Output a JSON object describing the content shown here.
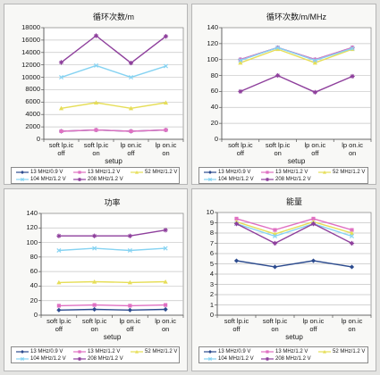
{
  "chart_data": [
    {
      "type": "line",
      "title": "循环次数/m",
      "xlabel": "setup",
      "ylabel": "",
      "categories": [
        "soft lp.ic off",
        "soft lp.ic on",
        "lp on.ic off",
        "lp on.ic on"
      ],
      "ylim": [
        0,
        18000
      ],
      "yticks": [
        0,
        2000,
        4000,
        6000,
        8000,
        10000,
        12000,
        14000,
        16000,
        18000
      ],
      "grid": true,
      "legend": "bottom",
      "series": [
        {
          "name": "13 MHz/0.9 V",
          "color": "#2c4b8e",
          "marker": "diamond",
          "values": [
            1300,
            1500,
            1300,
            1500
          ]
        },
        {
          "name": "13 MHz/1.2 V",
          "color": "#e070c2",
          "marker": "square",
          "values": [
            1300,
            1500,
            1300,
            1500
          ]
        },
        {
          "name": "52 MHz/1.2 V",
          "color": "#e6de58",
          "marker": "triangle",
          "values": [
            5000,
            5900,
            5000,
            5900
          ]
        },
        {
          "name": "104 MHz/1.2 V",
          "color": "#86d3f2",
          "marker": "cross",
          "values": [
            10000,
            11900,
            10000,
            11800
          ]
        },
        {
          "name": "208 MHz/1.2 V",
          "color": "#8e3f9c",
          "marker": "star",
          "values": [
            12400,
            16700,
            12300,
            16600
          ]
        }
      ]
    },
    {
      "type": "line",
      "title": "循环次数/m/MHz",
      "xlabel": "setup",
      "ylabel": "",
      "categories": [
        "soft lp.ic off",
        "soft lp.ic on",
        "lp on.ic off",
        "lp on.ic on"
      ],
      "ylim": [
        0,
        140
      ],
      "yticks": [
        0,
        20,
        40,
        60,
        80,
        100,
        120,
        140
      ],
      "grid": true,
      "legend": "bottom",
      "series": [
        {
          "name": "13 MHz/0.9 V",
          "color": "#2c4b8e",
          "marker": "diamond",
          "values": [
            100,
            115,
            100,
            115
          ]
        },
        {
          "name": "13 MHz/1.2 V",
          "color": "#e070c2",
          "marker": "square",
          "values": [
            100,
            115,
            100,
            115
          ]
        },
        {
          "name": "52 MHz/1.2 V",
          "color": "#e6de58",
          "marker": "triangle",
          "values": [
            96,
            113,
            96,
            113
          ]
        },
        {
          "name": "104 MHz/1.2 V",
          "color": "#86d3f2",
          "marker": "cross",
          "values": [
            99,
            115,
            99,
            114
          ]
        },
        {
          "name": "208 MHz/1.2 V",
          "color": "#8e3f9c",
          "marker": "star",
          "values": [
            60,
            80,
            59,
            79
          ]
        }
      ]
    },
    {
      "type": "line",
      "title": "功率",
      "xlabel": "setup",
      "ylabel": "",
      "categories": [
        "soft lp.ic off",
        "soft lp.ic on",
        "lp on.ic off",
        "lp on.ic on"
      ],
      "ylim": [
        0,
        140
      ],
      "yticks": [
        0,
        20,
        40,
        60,
        80,
        100,
        120,
        140
      ],
      "grid": true,
      "legend": "bottom",
      "series": [
        {
          "name": "13 MHz/0.9 V",
          "color": "#2c4b8e",
          "marker": "diamond",
          "values": [
            7,
            8,
            7,
            8
          ]
        },
        {
          "name": "13 MHz/1.2 V",
          "color": "#e070c2",
          "marker": "square",
          "values": [
            13,
            14,
            13,
            14
          ]
        },
        {
          "name": "52 MHz/1.2 V",
          "color": "#e6de58",
          "marker": "triangle",
          "values": [
            45,
            46,
            45,
            46
          ]
        },
        {
          "name": "104 MHz/1.2 V",
          "color": "#86d3f2",
          "marker": "cross",
          "values": [
            89,
            92,
            89,
            92
          ]
        },
        {
          "name": "208 MHz/1.2 V",
          "color": "#8e3f9c",
          "marker": "star",
          "values": [
            109,
            109,
            109,
            117
          ]
        }
      ]
    },
    {
      "type": "line",
      "title": "能量",
      "xlabel": "setup",
      "ylabel": "",
      "categories": [
        "soft lp.ic off",
        "soft lp.ic on",
        "lp on.ic off",
        "lp on.ic on"
      ],
      "ylim": [
        0,
        10
      ],
      "yticks": [
        0,
        1,
        2,
        3,
        4,
        5,
        6,
        7,
        8,
        9,
        10
      ],
      "grid": true,
      "legend": "bottom",
      "series": [
        {
          "name": "13 MHz/0.9 V",
          "color": "#2c4b8e",
          "marker": "diamond",
          "values": [
            5.3,
            4.7,
            5.3,
            4.7
          ]
        },
        {
          "name": "13 MHz/1.2 V",
          "color": "#e070c2",
          "marker": "square",
          "values": [
            9.4,
            8.3,
            9.4,
            8.3
          ]
        },
        {
          "name": "52 MHz/1.2 V",
          "color": "#e6de58",
          "marker": "triangle",
          "values": [
            9.1,
            7.9,
            9.1,
            8.0
          ]
        },
        {
          "name": "104 MHz/1.2 V",
          "color": "#86d3f2",
          "marker": "cross",
          "values": [
            8.9,
            7.7,
            8.9,
            7.7
          ]
        },
        {
          "name": "208 MHz/1.2 V",
          "color": "#8e3f9c",
          "marker": "star",
          "values": [
            8.9,
            7.0,
            8.9,
            7.0
          ]
        }
      ]
    }
  ]
}
